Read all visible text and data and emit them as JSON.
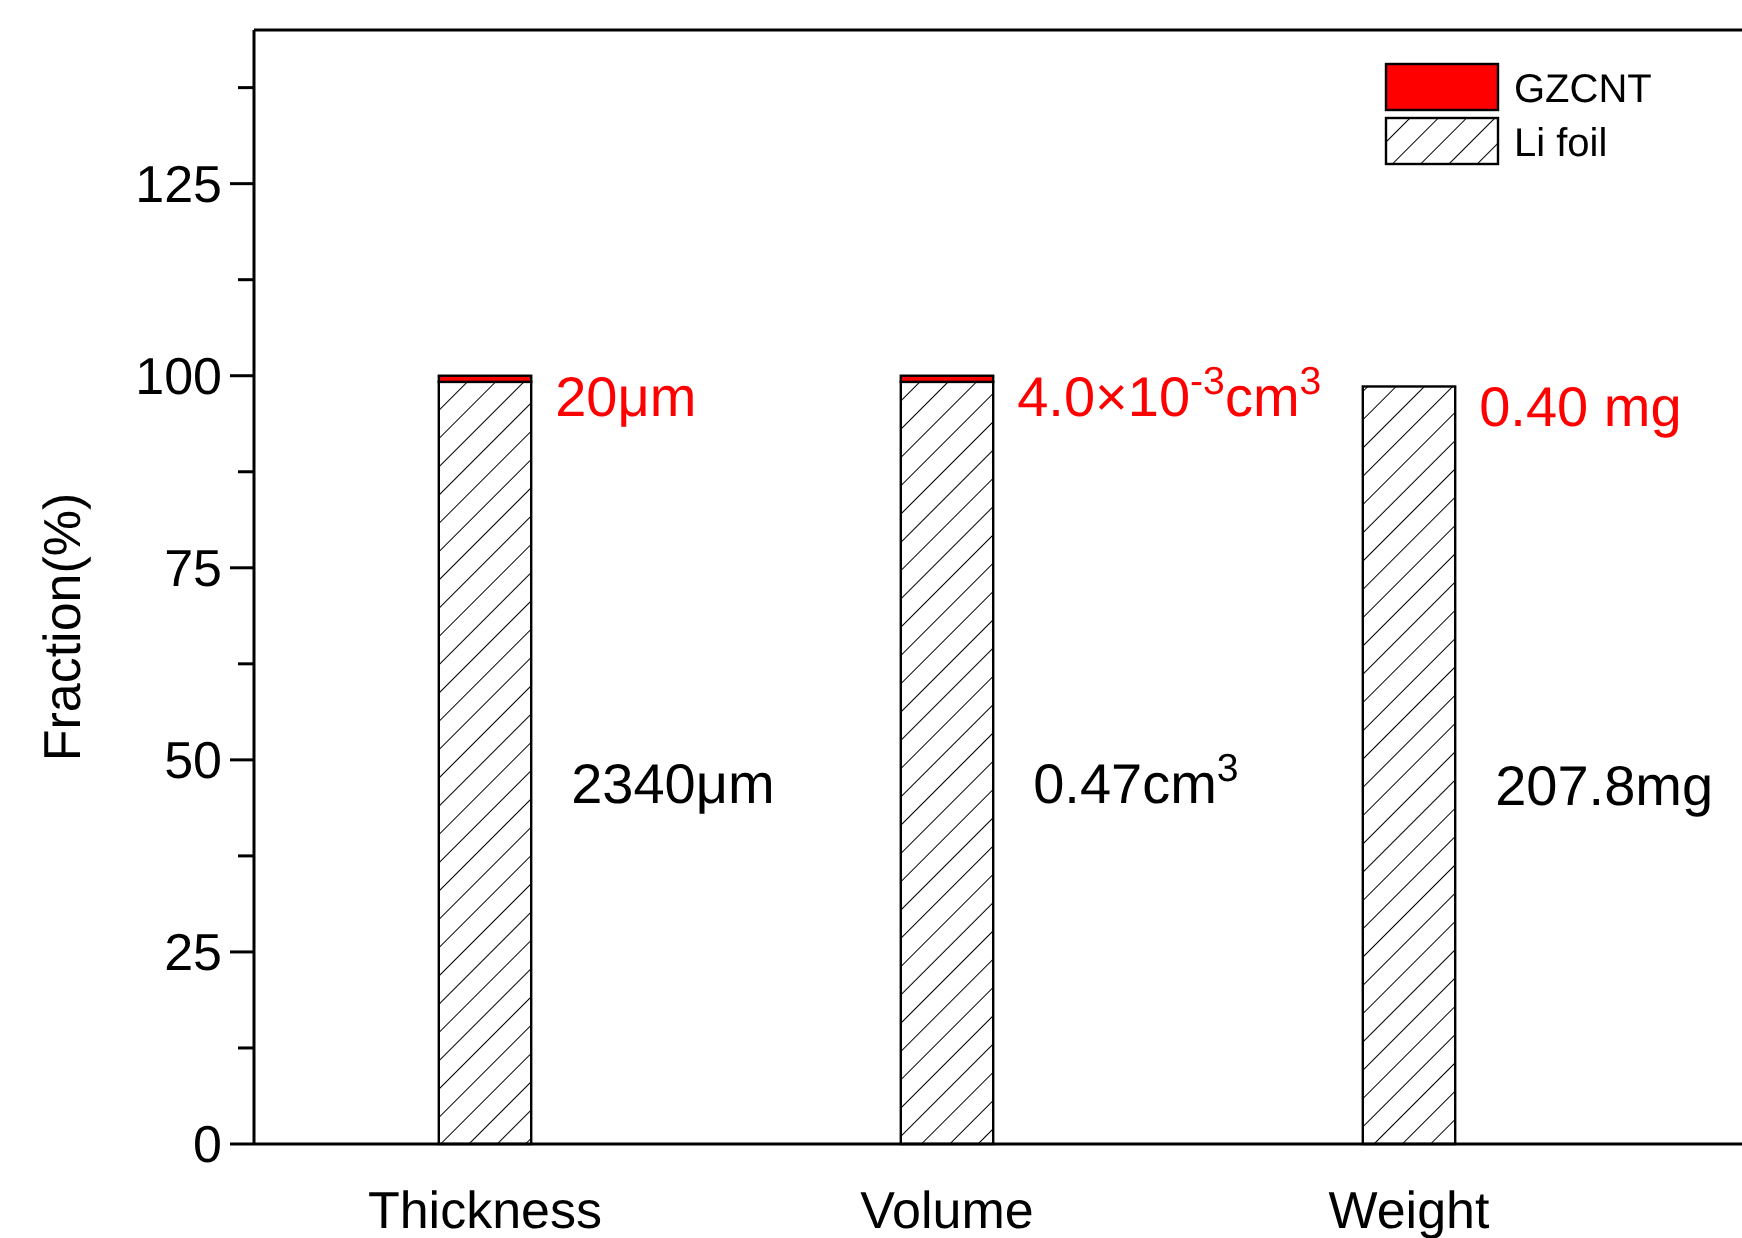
{
  "chart_data": {
    "type": "bar",
    "stacked": true,
    "ylabel": "Fraction(%)",
    "categories": [
      "Thickness",
      "Volume",
      "Weight"
    ],
    "series": [
      {
        "name": "Li foil",
        "color": "#000000",
        "values": [
          99.2,
          99.2,
          98.6
        ]
      },
      {
        "name": "GZCNT",
        "color": "#ff0000",
        "values": [
          0.8,
          0.8,
          null
        ]
      }
    ],
    "annotations": [
      {
        "text": "20μm",
        "x": "Thickness",
        "y": 100
      },
      {
        "text": "4.0×10$^{-3}$cm$^{3}$",
        "x": "Volume",
        "y": 100
      },
      {
        "text": "0.40 mg",
        "x": "Weight",
        "y": 98.6
      },
      "2340μm",
      "0.47cm$^{3}$",
      "207.8mg"
    ],
    "ylim": [
      0,
      145
    ],
    "yticks": [
      0,
      {
        "value": 12.5,
        "label": null
      },
      25,
      {
        "value": 37.5,
        "label": null
      },
      50,
      {
        "value": 62.5,
        "label": null
      },
      75,
      {
        "value": 87.5,
        "label": null
      },
      100,
      {
        "value": 112.5,
        "label": null
      },
      125,
      {
        "value": 137.5,
        "label": null
      }
    ],
    "grid": false,
    "legend": "top right"
  }
}
